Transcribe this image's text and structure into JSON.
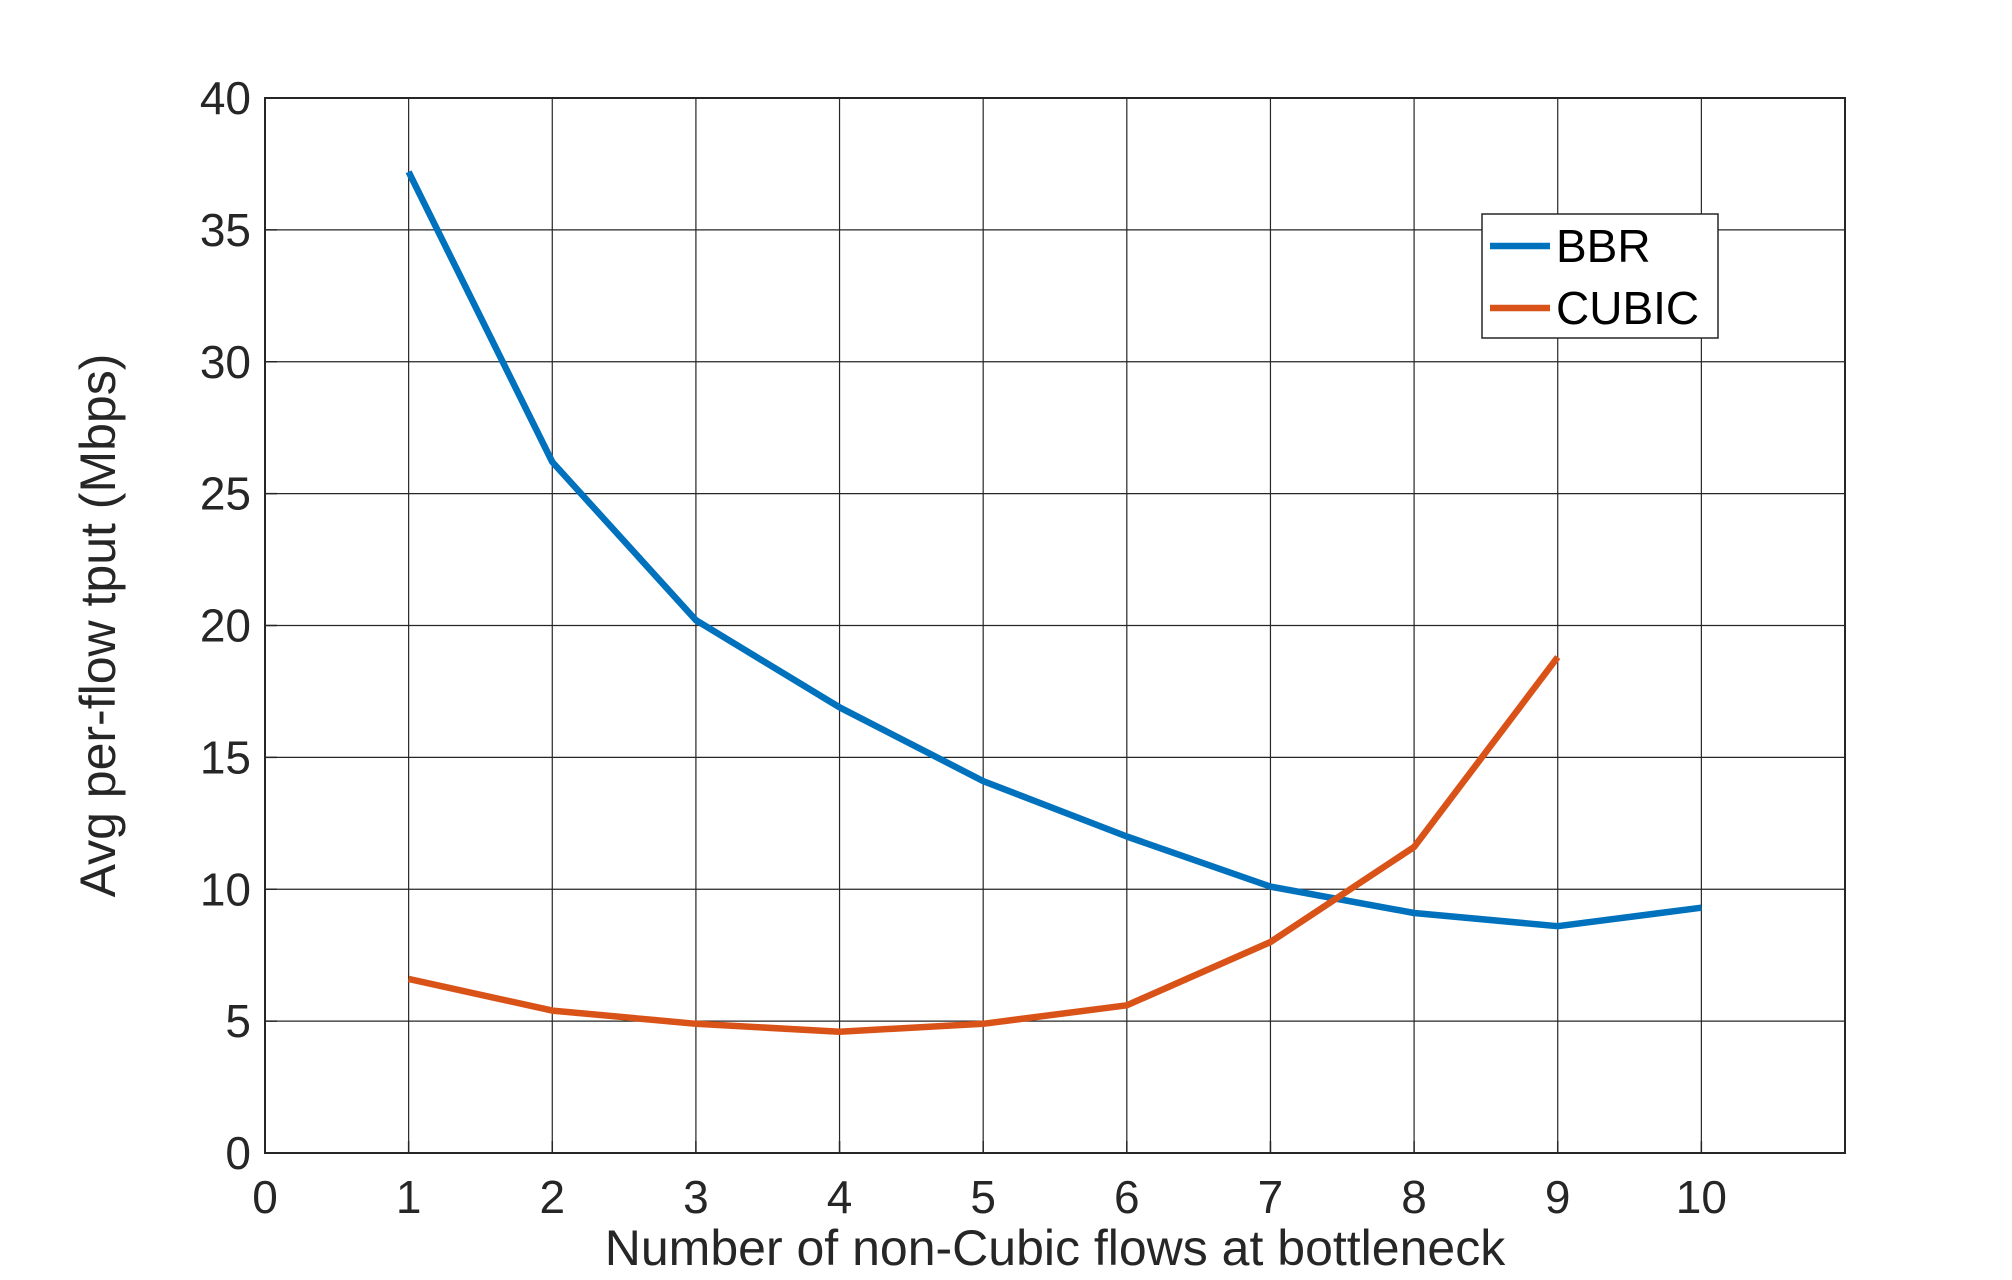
{
  "chart_data": {
    "type": "line",
    "title": "",
    "xlabel": "Number of non-Cubic flows at bottleneck",
    "ylabel": "Avg per-flow tput (Mbps)",
    "xlim": [
      0,
      11
    ],
    "ylim": [
      0,
      40
    ],
    "xticks": [
      0,
      1,
      2,
      3,
      4,
      5,
      6,
      7,
      8,
      9,
      10
    ],
    "yticks": [
      0,
      5,
      10,
      15,
      20,
      25,
      30,
      35,
      40
    ],
    "xtick_labels": [
      "0",
      "1",
      "2",
      "3",
      "4",
      "5",
      "6",
      "7",
      "8",
      "9",
      "10"
    ],
    "ytick_labels": [
      "0",
      "5",
      "10",
      "15",
      "20",
      "25",
      "30",
      "35",
      "40"
    ],
    "grid": true,
    "legend_position": "top-right",
    "series": [
      {
        "name": "BBR",
        "color": "#0072BD",
        "x": [
          1,
          2,
          3,
          4,
          5,
          6,
          7,
          8,
          9,
          10
        ],
        "values": [
          37.2,
          26.2,
          20.2,
          16.9,
          14.1,
          12.0,
          10.1,
          9.1,
          8.6,
          9.3
        ]
      },
      {
        "name": "CUBIC",
        "color": "#D95319",
        "x": [
          1,
          2,
          3,
          4,
          5,
          6,
          7,
          8,
          9
        ],
        "values": [
          6.6,
          5.4,
          4.9,
          4.6,
          4.9,
          5.6,
          8.0,
          11.6,
          18.8
        ]
      }
    ]
  }
}
